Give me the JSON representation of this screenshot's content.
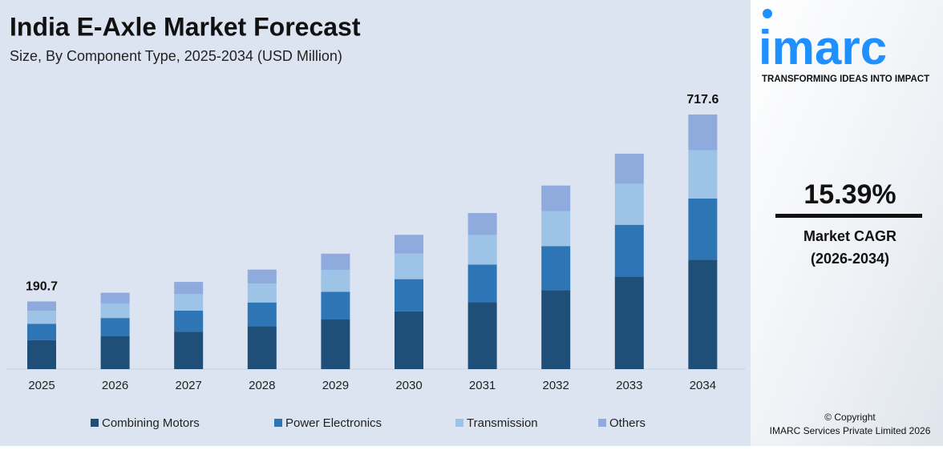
{
  "chart_data": {
    "type": "stacked-bar",
    "title": "India E-Axle Market Forecast",
    "subtitle": "Size, By Component Type, 2025-2034 (USD Million)",
    "categories": [
      "2025",
      "2026",
      "2027",
      "2028",
      "2029",
      "2030",
      "2031",
      "2032",
      "2033",
      "2034"
    ],
    "series": [
      {
        "name": "Combining Motors",
        "color": "#1f4e79",
        "values": [
          82.0,
          92.5,
          105.7,
          120.6,
          139.9,
          162.8,
          189.1,
          222.5,
          261.1,
          308.6
        ]
      },
      {
        "name": "Power Electronics",
        "color": "#2e75b6",
        "values": [
          45.8,
          51.6,
          59.0,
          67.3,
          78.1,
          90.8,
          105.6,
          124.2,
          145.7,
          172.2
        ]
      },
      {
        "name": "Transmission",
        "color": "#9dc3e6",
        "values": [
          36.2,
          40.9,
          46.7,
          53.3,
          61.8,
          71.9,
          83.6,
          98.3,
          115.4,
          136.3
        ]
      },
      {
        "name": "Others",
        "color": "#8faadc",
        "values": [
          26.7,
          30.2,
          34.4,
          39.3,
          45.6,
          53.0,
          61.5,
          72.4,
          85.0,
          100.5
        ]
      }
    ],
    "totals": [
      190.7,
      null,
      null,
      null,
      null,
      null,
      null,
      null,
      null,
      717.6
    ]
  },
  "sidebar": {
    "logo": "imarc",
    "tagline": "TRANSFORMING IDEAS INTO IMPACT",
    "cagr": "15.39%",
    "cagr_label": "Market CAGR",
    "cagr_period": "(2026-2034)",
    "copyright": "© Copyright",
    "company": "IMARC Services Private Limited 2026"
  }
}
